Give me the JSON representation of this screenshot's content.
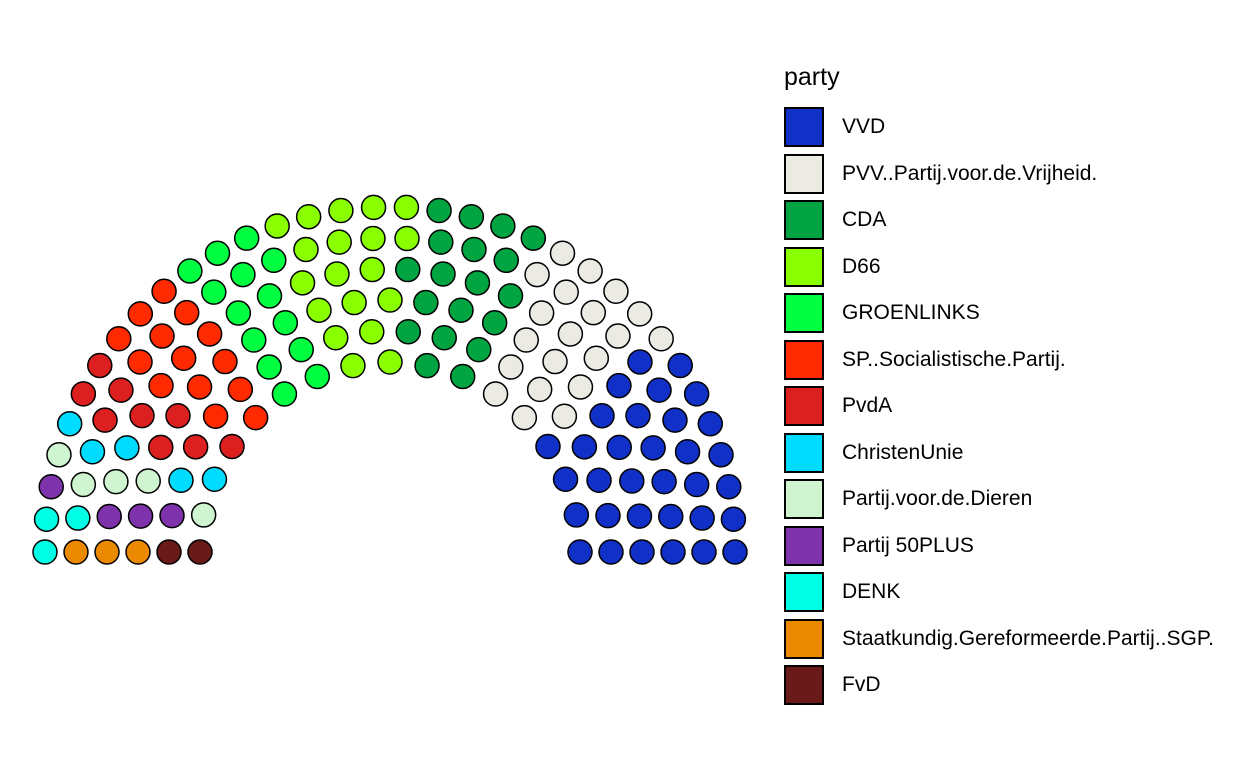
{
  "chart_data": {
    "type": "parliament",
    "title": "",
    "legend": {
      "title": "party",
      "position": "right"
    },
    "total_seats": 150,
    "series": [
      {
        "name": "VVD",
        "seats": 33,
        "color": "#1030C8"
      },
      {
        "name": "PVV..Partij.voor.de.Vrijheid.",
        "seats": 20,
        "color": "#EBEBE4"
      },
      {
        "name": "CDA",
        "seats": 19,
        "color": "#00A541"
      },
      {
        "name": "D66",
        "seats": 19,
        "color": "#89FF00"
      },
      {
        "name": "GROENLINKS",
        "seats": 14,
        "color": "#00FF40"
      },
      {
        "name": "SP..Socialistische.Partij.",
        "seats": 14,
        "color": "#FF2A00"
      },
      {
        "name": "PvdA",
        "seats": 9,
        "color": "#DC2020"
      },
      {
        "name": "ChristenUnie",
        "seats": 5,
        "color": "#00DCFF"
      },
      {
        "name": "Partij.voor.de.Dieren",
        "seats": 5,
        "color": "#CFF5D0"
      },
      {
        "name": "Partij 50PLUS",
        "seats": 4,
        "color": "#7E33AC"
      },
      {
        "name": "DENK",
        "seats": 3,
        "color": "#00FFE4"
      },
      {
        "name": "Staatkundig.Gereformeerde.Partij..SGP.",
        "seats": 3,
        "color": "#EB8A00"
      },
      {
        "name": "FvD",
        "seats": 2,
        "color": "#6B1A1A"
      }
    ]
  }
}
